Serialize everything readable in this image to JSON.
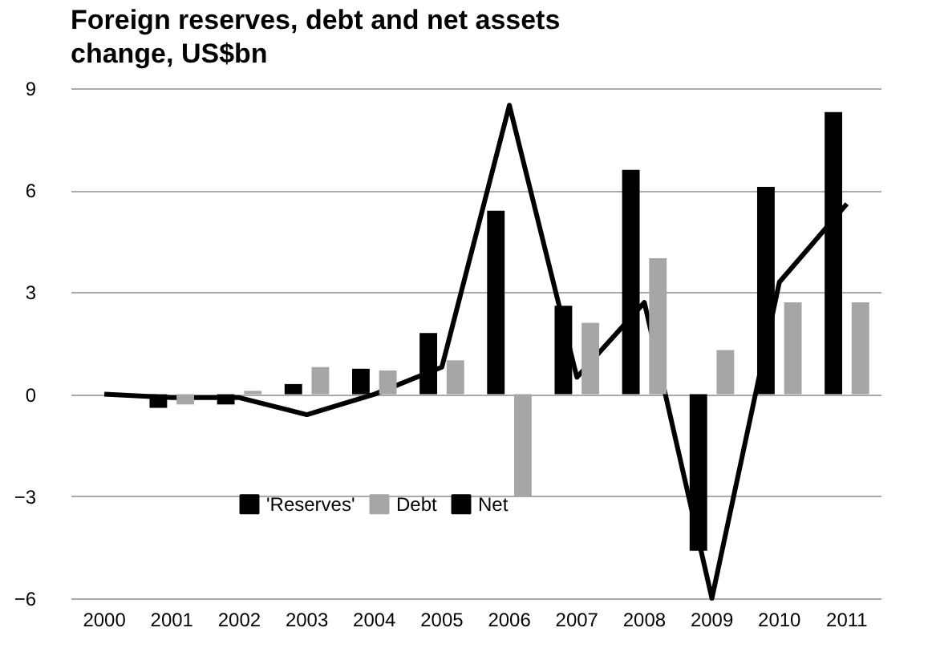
{
  "chart_data": {
    "type": "bar",
    "title": "Foreign reserves, debt and net assets change, US$bn",
    "categories": [
      "2000",
      "2001",
      "2002",
      "2003",
      "2004",
      "2005",
      "2006",
      "2007",
      "2008",
      "2009",
      "2010",
      "2011"
    ],
    "series": [
      {
        "name": "'Reserves'",
        "color": "#000000",
        "values": [
          0,
          -0.4,
          -0.3,
          0.3,
          0.75,
          1.8,
          5.4,
          2.6,
          6.6,
          -4.6,
          6.1,
          8.3
        ]
      },
      {
        "name": "Debt",
        "color": "#a6a6a6",
        "values": [
          0,
          -0.3,
          0.1,
          0.8,
          0.7,
          1.0,
          -3.0,
          2.1,
          4.0,
          1.3,
          2.7,
          2.7
        ]
      },
      {
        "name": "Net",
        "type": "line",
        "color": "#000000",
        "values": [
          0,
          -0.1,
          -0.1,
          -0.6,
          0,
          0.8,
          8.5,
          0.5,
          2.7,
          -6.0,
          3.3,
          5.6
        ]
      }
    ],
    "ylim": [
      -6,
      9
    ],
    "yticks": [
      -6,
      -3,
      0,
      3,
      6,
      9
    ],
    "grid": "y",
    "legend": "bottom"
  }
}
